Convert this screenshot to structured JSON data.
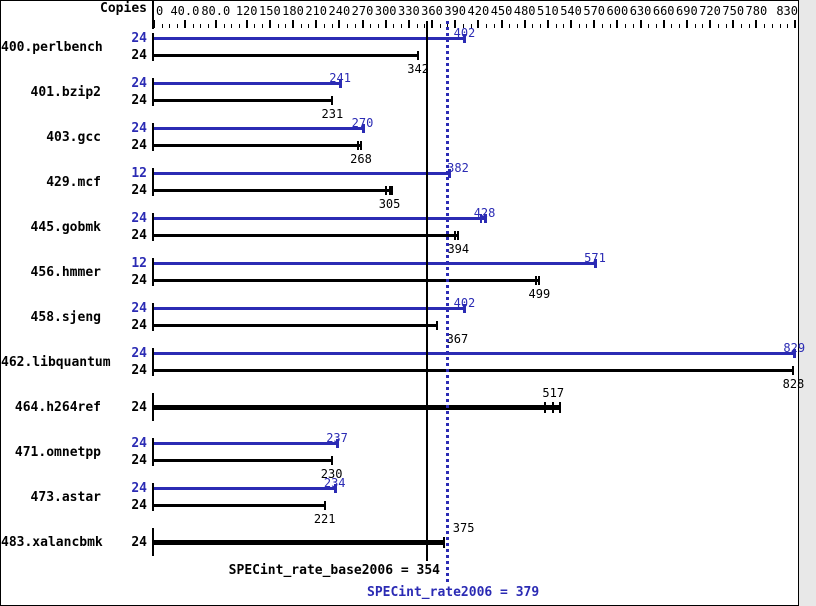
{
  "chart_data": {
    "type": "bar",
    "orientation": "horizontal",
    "copies_header": "Copies",
    "axis": {
      "min": 0,
      "max": 830,
      "minor_tick_step": 10,
      "major_ticks": [
        {
          "v": 0,
          "label": "0"
        },
        {
          "v": 40,
          "label": "40.0"
        },
        {
          "v": 80,
          "label": "80.0"
        },
        {
          "v": 120,
          "label": "120"
        },
        {
          "v": 150,
          "label": "150"
        },
        {
          "v": 180,
          "label": "180"
        },
        {
          "v": 210,
          "label": "210"
        },
        {
          "v": 240,
          "label": "240"
        },
        {
          "v": 270,
          "label": "270"
        },
        {
          "v": 300,
          "label": "300"
        },
        {
          "v": 330,
          "label": "330"
        },
        {
          "v": 360,
          "label": "360"
        },
        {
          "v": 390,
          "label": "390"
        },
        {
          "v": 420,
          "label": "420"
        },
        {
          "v": 450,
          "label": "450"
        },
        {
          "v": 480,
          "label": "480"
        },
        {
          "v": 510,
          "label": "510"
        },
        {
          "v": 540,
          "label": "540"
        },
        {
          "v": 570,
          "label": "570"
        },
        {
          "v": 600,
          "label": "600"
        },
        {
          "v": 630,
          "label": "630"
        },
        {
          "v": 660,
          "label": "660"
        },
        {
          "v": 690,
          "label": "690"
        },
        {
          "v": 720,
          "label": "720"
        },
        {
          "v": 750,
          "label": "750"
        },
        {
          "v": 780,
          "label": "780"
        },
        {
          "v": 830,
          "label": "830"
        }
      ]
    },
    "series_colors": {
      "peak": "#2b2bb4",
      "base": "#000000"
    },
    "benchmarks": [
      {
        "name": "400.perlbench",
        "rows": [
          {
            "series": "peak",
            "copies": 24,
            "value": 402
          },
          {
            "series": "base",
            "copies": 24,
            "value": 342
          }
        ]
      },
      {
        "name": "401.bzip2",
        "rows": [
          {
            "series": "peak",
            "copies": 24,
            "value": 241
          },
          {
            "series": "base",
            "copies": 24,
            "value": 231
          }
        ]
      },
      {
        "name": "403.gcc",
        "rows": [
          {
            "series": "peak",
            "copies": 24,
            "value": 270
          },
          {
            "series": "base",
            "copies": 24,
            "value": 268,
            "marks": [
              264
            ]
          }
        ]
      },
      {
        "name": "429.mcf",
        "rows": [
          {
            "series": "peak",
            "copies": 12,
            "value": 382,
            "label_dx": 9
          },
          {
            "series": "base",
            "copies": 24,
            "value": 305,
            "marks": [
              301,
              308
            ]
          }
        ]
      },
      {
        "name": "445.gobmk",
        "rows": [
          {
            "series": "peak",
            "copies": 24,
            "value": 428,
            "marks": [
              424
            ]
          },
          {
            "series": "base",
            "copies": 24,
            "value": 394,
            "marks": [
              390
            ]
          }
        ]
      },
      {
        "name": "456.hmmer",
        "rows": [
          {
            "series": "peak",
            "copies": 12,
            "value": 571
          },
          {
            "series": "base",
            "copies": 24,
            "value": 499,
            "marks": [
              495
            ]
          }
        ]
      },
      {
        "name": "458.sjeng",
        "rows": [
          {
            "series": "peak",
            "copies": 24,
            "value": 402
          },
          {
            "series": "base",
            "copies": 24,
            "value": 367,
            "label_dx": 20
          }
        ]
      },
      {
        "name": "462.libquantum",
        "rows": [
          {
            "series": "peak",
            "copies": 24,
            "value": 829
          },
          {
            "series": "base",
            "copies": 24,
            "value": 828
          }
        ]
      },
      {
        "name": "464.h264ref",
        "rows": [
          {
            "series": "both",
            "copies": 24,
            "value": 517,
            "marks": [
              506,
              526
            ]
          }
        ]
      },
      {
        "name": "471.omnetpp",
        "rows": [
          {
            "series": "peak",
            "copies": 24,
            "value": 237
          },
          {
            "series": "base",
            "copies": 24,
            "value": 230
          }
        ]
      },
      {
        "name": "473.astar",
        "rows": [
          {
            "series": "peak",
            "copies": 24,
            "value": 234
          },
          {
            "series": "base",
            "copies": 24,
            "value": 221
          }
        ]
      },
      {
        "name": "483.xalancbmk",
        "rows": [
          {
            "series": "both",
            "copies": 24,
            "value": 375,
            "label_dx": 20
          }
        ]
      }
    ],
    "reference_lines": [
      {
        "name": "base",
        "value": 354,
        "style": "solid",
        "color": "#000000"
      },
      {
        "name": "peak",
        "value": 379,
        "style": "dotted",
        "color": "#2b2bb4"
      }
    ],
    "summary": {
      "base_label": "SPECint_rate_base2006 = 354",
      "peak_label": "SPECint_rate2006 = 379"
    }
  }
}
